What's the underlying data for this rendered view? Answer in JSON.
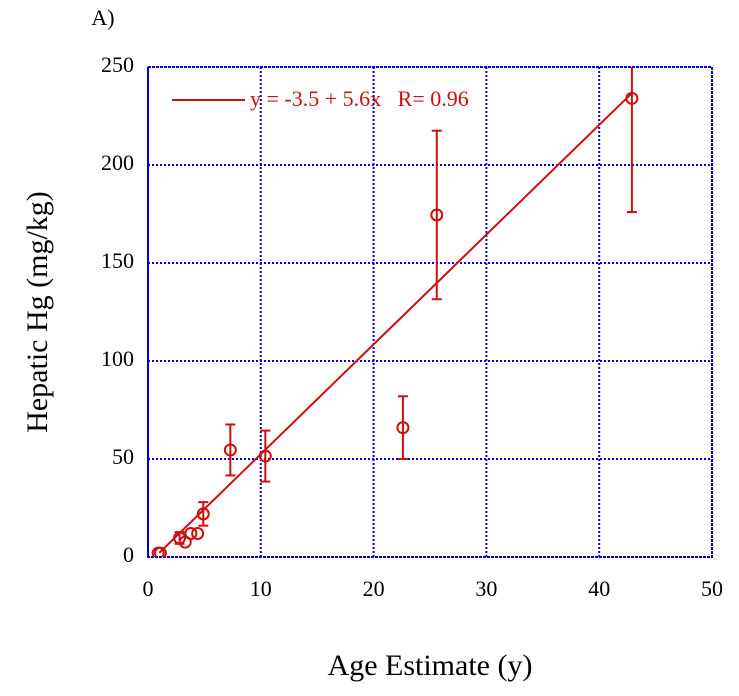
{
  "chart_data": {
    "type": "scatter",
    "title": "A)",
    "xlabel": "Age Estimate (y)",
    "ylabel": "Hepatic Hg (mg/kg)",
    "xlim": [
      0,
      50
    ],
    "xticks": [
      0,
      10,
      20,
      30,
      40,
      50
    ],
    "ylim": [
      0,
      250
    ],
    "yticks": [
      0,
      50,
      100,
      150,
      200,
      250
    ],
    "grid": true,
    "color": "#cc1010",
    "frame_color": "#0000cc",
    "x": [
      0.9,
      1.1,
      2.8,
      3.3,
      3.8,
      4.4,
      4.9,
      7.3,
      10.4,
      22.6,
      25.6,
      42.9
    ],
    "values": [
      2,
      2,
      9.7,
      7.6,
      12,
      12,
      22,
      54.6,
      51.5,
      66,
      174.5,
      234
    ],
    "errors": [
      0,
      0,
      3,
      0,
      0,
      0,
      6,
      13,
      13,
      16,
      43,
      58
    ],
    "fit": {
      "name": "y = -3.5 + 5.6x   R= 0.96",
      "x": [
        1,
        42.9
      ],
      "values": [
        2.1,
        236.7
      ]
    },
    "legend": "upper left"
  }
}
